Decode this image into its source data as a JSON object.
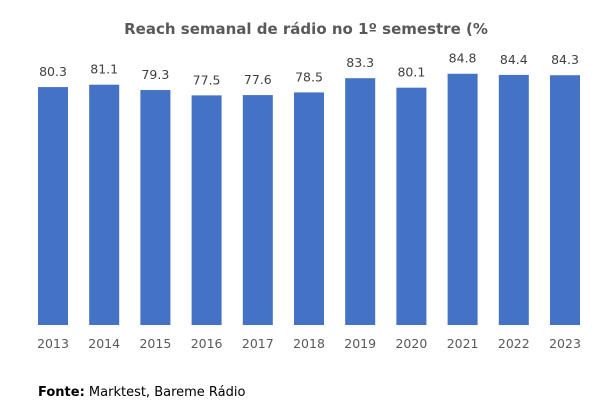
{
  "chart_data": {
    "type": "bar",
    "title": "Reach semanal de rádio no 1º semestre (%",
    "categories": [
      "2013",
      "2014",
      "2015",
      "2016",
      "2017",
      "2018",
      "2019",
      "2020",
      "2021",
      "2022",
      "2023"
    ],
    "values": [
      80.3,
      81.1,
      79.3,
      77.5,
      77.6,
      78.5,
      83.3,
      80.1,
      84.8,
      84.4,
      84.3
    ],
    "xlabel": "",
    "ylabel": "",
    "ylim": [
      0,
      100
    ],
    "grid": false,
    "bar_color": "#4472C4"
  },
  "source": {
    "label": "Fonte:",
    "text": " Marktest, Bareme Rádio"
  }
}
